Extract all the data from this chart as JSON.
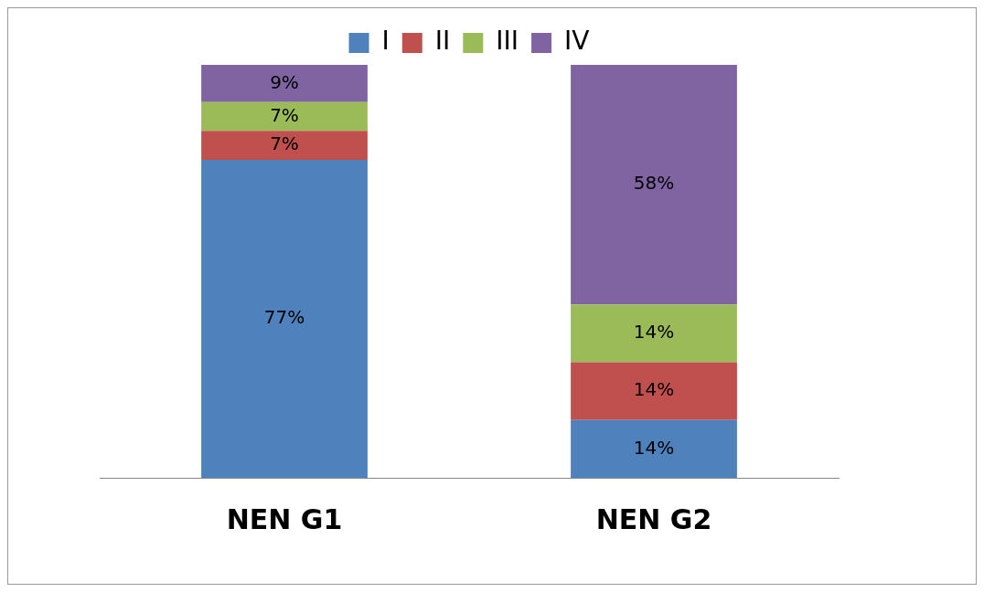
{
  "chart_data": {
    "type": "bar",
    "stacked": true,
    "categories": [
      "NEN G1",
      "NEN G2"
    ],
    "series": [
      {
        "name": "I",
        "color": "#4f81bd",
        "values": [
          77,
          14
        ],
        "value_labels": [
          "77%",
          "14%"
        ]
      },
      {
        "name": "II",
        "color": "#c0504d",
        "values": [
          7,
          14
        ],
        "value_labels": [
          "7%",
          "14%"
        ]
      },
      {
        "name": "III",
        "color": "#9bbb59",
        "values": [
          7,
          14
        ],
        "value_labels": [
          "7%",
          "14%"
        ]
      },
      {
        "name": "IV",
        "color": "#8064a2",
        "values": [
          9,
          58
        ],
        "value_labels": [
          "9%",
          "58%"
        ]
      }
    ],
    "ylim": [
      0,
      100
    ],
    "legend": "top",
    "grid": false,
    "tick_labels": "x"
  }
}
